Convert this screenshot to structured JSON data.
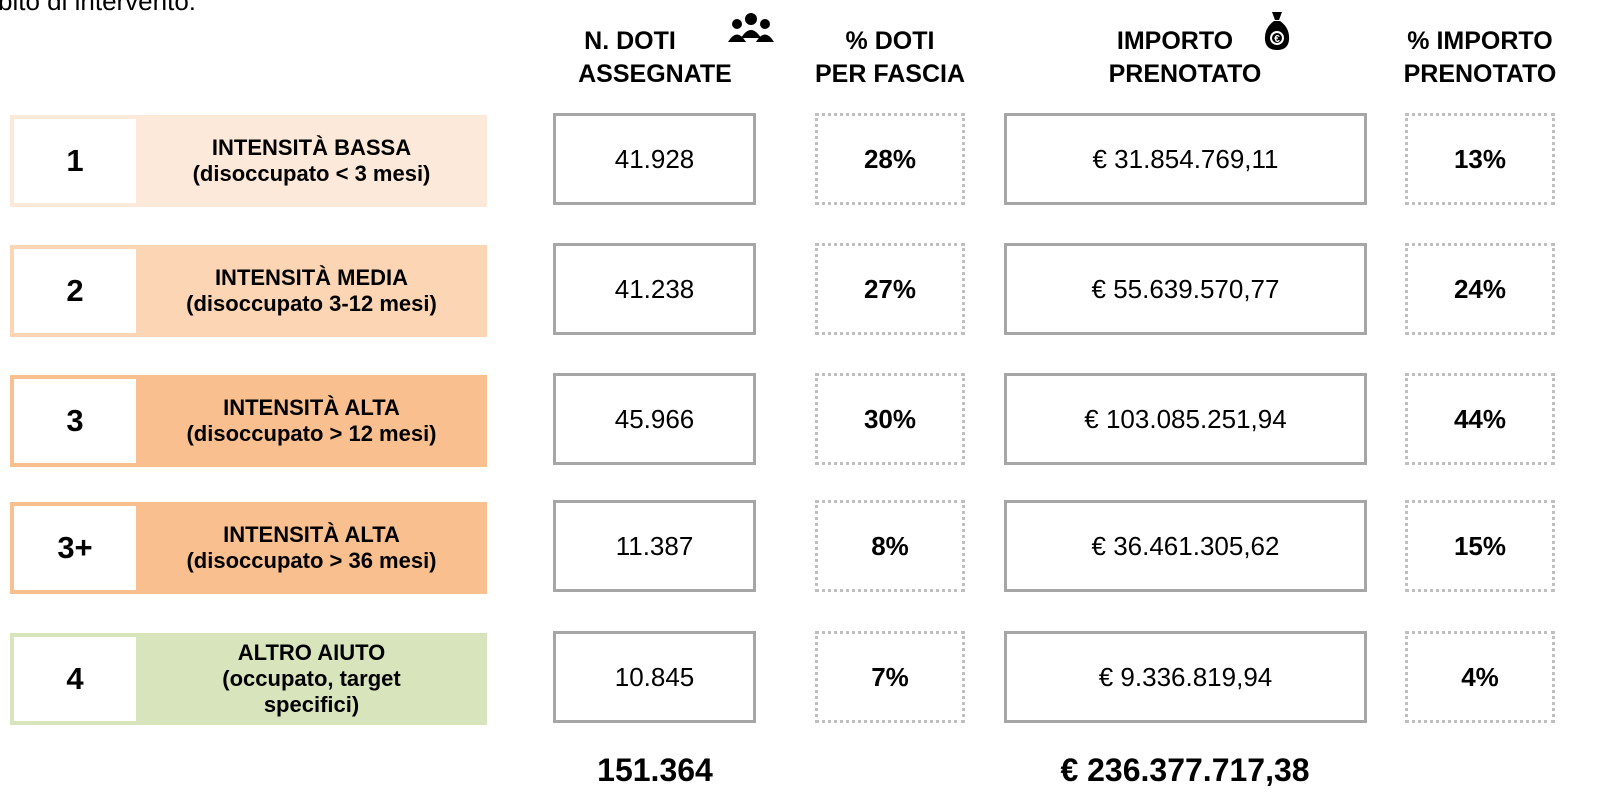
{
  "header": {
    "caption": "bito di intervento:",
    "columns": [
      [
        "N. DOTI",
        "ASSEGNATE"
      ],
      [
        "% DOTI",
        "PER FASCIA"
      ],
      [
        "IMPORTO",
        "PRENOTATO"
      ],
      [
        "% IMPORTO",
        "PRENOTATO"
      ]
    ]
  },
  "rows": [
    {
      "number": "1",
      "title": "INTENSITÀ BASSA",
      "subtitle": "(disoccupato < 3 mesi)",
      "doti": "41.928",
      "pct_doti": "28%",
      "importo": "€ 31.854.769,11",
      "pct_importo": "13%",
      "color": "#fde9d9"
    },
    {
      "number": "2",
      "title": "INTENSITÀ MEDIA",
      "subtitle": "(disoccupato 3-12 mesi)",
      "doti": "41.238",
      "pct_doti": "27%",
      "importo": "€ 55.639.570,77",
      "pct_importo": "24%",
      "color": "#fcd5b4"
    },
    {
      "number": "3",
      "title": "INTENSITÀ ALTA",
      "subtitle": "(disoccupato > 12 mesi)",
      "doti": "45.966",
      "pct_doti": "30%",
      "importo": "€ 103.085.251,94",
      "pct_importo": "44%",
      "color": "#fabf8f"
    },
    {
      "number": "3+",
      "title": "INTENSITÀ ALTA",
      "subtitle": "(disoccupato > 36 mesi)",
      "doti": "11.387",
      "pct_doti": "8%",
      "importo": "€ 36.461.305,62",
      "pct_importo": "15%",
      "color": "#fabf8f"
    },
    {
      "number": "4",
      "title": "ALTRO AIUTO",
      "subtitle": "(occupato, target specifici)",
      "doti": "10.845",
      "pct_doti": "7%",
      "importo": "€ 9.336.819,94",
      "pct_importo": "4%",
      "color": "#d8e4bc"
    }
  ],
  "totals": {
    "doti": "151.364",
    "importo": "€ 236.377.717,38"
  }
}
